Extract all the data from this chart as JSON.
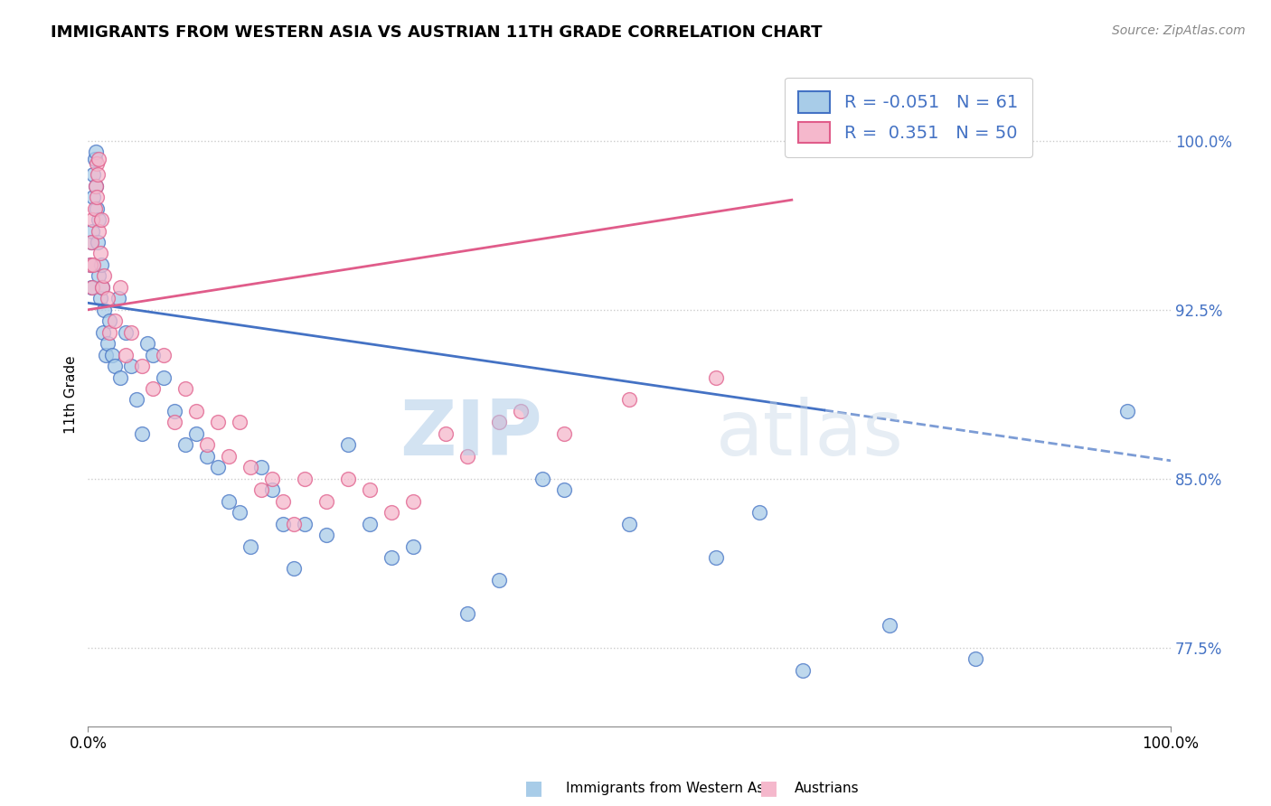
{
  "title": "IMMIGRANTS FROM WESTERN ASIA VS AUSTRIAN 11TH GRADE CORRELATION CHART",
  "source_text": "Source: ZipAtlas.com",
  "ylabel": "11th Grade",
  "xlim": [
    0.0,
    100.0
  ],
  "ylim": [
    74.0,
    103.5
  ],
  "yticks": [
    77.5,
    85.0,
    92.5,
    100.0
  ],
  "ytick_labels": [
    "77.5%",
    "85.0%",
    "92.5%",
    "100.0%"
  ],
  "xtick_labels": [
    "0.0%",
    "100.0%"
  ],
  "blue_color": "#a8cce8",
  "pink_color": "#f5b8cc",
  "blue_line_color": "#4472c4",
  "pink_line_color": "#e05c8a",
  "blue_r": -0.051,
  "blue_n": 61,
  "pink_r": 0.351,
  "pink_n": 50,
  "legend_label_blue": "Immigrants from Western Asia",
  "legend_label_pink": "Austrians",
  "watermark_zip": "ZIP",
  "watermark_atlas": "atlas",
  "blue_intercept": 92.8,
  "blue_slope": -0.07,
  "pink_intercept": 92.5,
  "pink_slope": 0.075,
  "blue_solid_end": 68.0,
  "blue_dashed_start": 68.0,
  "blue_line_end": 100.0,
  "pink_line_end": 65.0,
  "blue_points_x": [
    0.2,
    0.3,
    0.3,
    0.4,
    0.5,
    0.5,
    0.6,
    0.7,
    0.7,
    0.8,
    0.9,
    1.0,
    1.0,
    1.1,
    1.2,
    1.3,
    1.4,
    1.5,
    1.6,
    1.8,
    2.0,
    2.2,
    2.5,
    2.8,
    3.0,
    3.5,
    4.0,
    4.5,
    5.0,
    5.5,
    6.0,
    7.0,
    8.0,
    9.0,
    10.0,
    11.0,
    12.0,
    13.0,
    14.0,
    15.0,
    16.0,
    17.0,
    18.0,
    19.0,
    20.0,
    22.0,
    24.0,
    26.0,
    28.0,
    30.0,
    35.0,
    38.0,
    42.0,
    44.0,
    50.0,
    58.0,
    62.0,
    66.0,
    74.0,
    82.0,
    96.0
  ],
  "blue_points_y": [
    94.5,
    93.5,
    95.5,
    96.0,
    97.5,
    98.5,
    99.2,
    99.5,
    98.0,
    97.0,
    95.5,
    94.0,
    96.5,
    93.0,
    94.5,
    93.5,
    91.5,
    92.5,
    90.5,
    91.0,
    92.0,
    90.5,
    90.0,
    93.0,
    89.5,
    91.5,
    90.0,
    88.5,
    87.0,
    91.0,
    90.5,
    89.5,
    88.0,
    86.5,
    87.0,
    86.0,
    85.5,
    84.0,
    83.5,
    82.0,
    85.5,
    84.5,
    83.0,
    81.0,
    83.0,
    82.5,
    86.5,
    83.0,
    81.5,
    82.0,
    79.0,
    80.5,
    85.0,
    84.5,
    83.0,
    81.5,
    83.5,
    76.5,
    78.5,
    77.0,
    88.0
  ],
  "pink_points_x": [
    0.2,
    0.3,
    0.4,
    0.4,
    0.5,
    0.6,
    0.7,
    0.8,
    0.8,
    0.9,
    1.0,
    1.0,
    1.1,
    1.2,
    1.3,
    1.5,
    1.8,
    2.0,
    2.5,
    3.0,
    3.5,
    4.0,
    5.0,
    6.0,
    7.0,
    8.0,
    9.0,
    10.0,
    11.0,
    12.0,
    13.0,
    14.0,
    15.0,
    16.0,
    17.0,
    18.0,
    19.0,
    20.0,
    22.0,
    24.0,
    26.0,
    28.0,
    30.0,
    33.0,
    35.0,
    38.0,
    40.0,
    44.0,
    50.0,
    58.0
  ],
  "pink_points_y": [
    94.5,
    95.5,
    93.5,
    96.5,
    94.5,
    97.0,
    98.0,
    99.0,
    97.5,
    98.5,
    99.2,
    96.0,
    95.0,
    96.5,
    93.5,
    94.0,
    93.0,
    91.5,
    92.0,
    93.5,
    90.5,
    91.5,
    90.0,
    89.0,
    90.5,
    87.5,
    89.0,
    88.0,
    86.5,
    87.5,
    86.0,
    87.5,
    85.5,
    84.5,
    85.0,
    84.0,
    83.0,
    85.0,
    84.0,
    85.0,
    84.5,
    83.5,
    84.0,
    87.0,
    86.0,
    87.5,
    88.0,
    87.0,
    88.5,
    89.5
  ]
}
